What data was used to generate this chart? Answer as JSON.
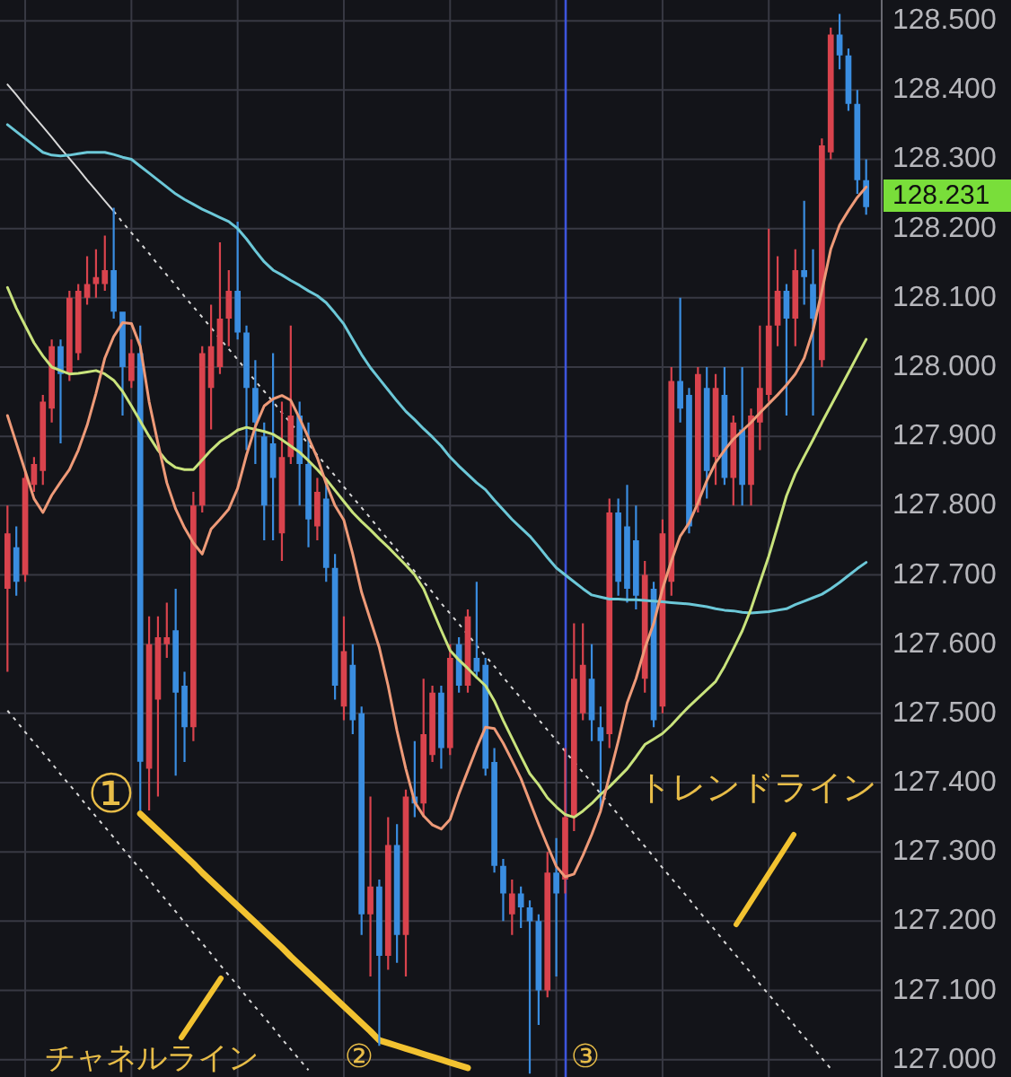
{
  "chart_data": {
    "type": "candlestick",
    "categories": [
      null,
      null,
      null,
      null,
      null,
      null,
      null,
      null,
      null,
      null,
      null,
      null,
      null,
      null,
      null,
      null,
      null,
      null,
      null,
      null,
      null,
      null,
      null,
      null,
      null,
      null,
      null,
      null,
      null,
      null,
      null,
      null,
      null,
      null,
      null,
      null,
      null,
      null,
      null,
      null,
      null,
      null,
      null,
      null,
      null,
      null,
      null,
      null,
      null,
      null,
      null,
      null,
      null,
      null,
      null,
      null,
      null,
      null,
      null,
      null,
      null,
      null,
      null,
      null,
      null,
      null,
      null,
      null,
      null,
      null,
      null,
      null,
      null,
      null,
      null,
      null,
      null,
      null,
      null,
      null,
      null,
      null,
      null,
      null,
      null,
      null,
      null,
      null,
      null,
      null,
      null,
      null,
      null,
      null,
      null,
      null,
      null,
      null
    ],
    "ohlc": [
      [
        127.68,
        127.8,
        127.56,
        127.76
      ],
      [
        127.74,
        127.77,
        127.67,
        127.69
      ],
      [
        127.7,
        127.85,
        127.69,
        127.84
      ],
      [
        127.83,
        127.87,
        127.82,
        127.86
      ],
      [
        127.85,
        127.96,
        127.83,
        127.95
      ],
      [
        127.94,
        128.04,
        127.92,
        128.03
      ],
      [
        128.03,
        128.04,
        127.89,
        127.99
      ],
      [
        127.99,
        128.11,
        127.98,
        128.1
      ],
      [
        128.02,
        128.12,
        128.01,
        128.11
      ],
      [
        128.1,
        128.16,
        128.09,
        128.12
      ],
      [
        128.12,
        128.17,
        128.1,
        128.13
      ],
      [
        128.12,
        128.19,
        128.11,
        128.14
      ],
      [
        128.14,
        128.23,
        128.07,
        128.08
      ],
      [
        128.08,
        128.08,
        127.93,
        128.0
      ],
      [
        127.98,
        128.04,
        127.97,
        128.02
      ],
      [
        128.02,
        128.06,
        127.36,
        127.43
      ],
      [
        127.42,
        127.64,
        127.36,
        127.6
      ],
      [
        127.52,
        127.64,
        127.38,
        127.61
      ],
      [
        127.6,
        127.66,
        127.58,
        127.61
      ],
      [
        127.62,
        127.68,
        127.41,
        127.53
      ],
      [
        127.54,
        127.56,
        127.43,
        127.48
      ],
      [
        127.48,
        127.82,
        127.46,
        127.8
      ],
      [
        127.8,
        128.03,
        127.79,
        128.02
      ],
      [
        127.97,
        128.09,
        127.91,
        128.03
      ],
      [
        128.0,
        128.18,
        127.99,
        128.07
      ],
      [
        128.07,
        128.14,
        128.03,
        128.11
      ],
      [
        128.11,
        128.21,
        128.04,
        128.05
      ],
      [
        128.05,
        128.06,
        127.88,
        127.97
      ],
      [
        127.97,
        128.01,
        127.86,
        127.92
      ],
      [
        127.9,
        127.92,
        127.75,
        127.8
      ],
      [
        127.89,
        128.02,
        127.75,
        127.84
      ],
      [
        127.76,
        127.95,
        127.72,
        127.87
      ],
      [
        127.87,
        128.06,
        127.86,
        127.93
      ],
      [
        127.93,
        127.95,
        127.8,
        127.86
      ],
      [
        127.86,
        127.92,
        127.74,
        127.78
      ],
      [
        127.77,
        127.84,
        127.75,
        127.82
      ],
      [
        127.81,
        127.83,
        127.69,
        127.71
      ],
      [
        127.71,
        127.73,
        127.52,
        127.54
      ],
      [
        127.51,
        127.64,
        127.49,
        127.59
      ],
      [
        127.57,
        127.6,
        127.47,
        127.49
      ],
      [
        127.5,
        127.51,
        127.18,
        127.21
      ],
      [
        127.21,
        127.38,
        127.12,
        127.25
      ],
      [
        127.25,
        127.26,
        127.02,
        127.15
      ],
      [
        127.15,
        127.35,
        127.13,
        127.31
      ],
      [
        127.31,
        127.34,
        127.14,
        127.18
      ],
      [
        127.18,
        127.39,
        127.12,
        127.38
      ],
      [
        127.38,
        127.46,
        127.35,
        127.37
      ],
      [
        127.37,
        127.55,
        127.35,
        127.47
      ],
      [
        127.44,
        127.54,
        127.43,
        127.53
      ],
      [
        127.53,
        127.54,
        127.42,
        127.45
      ],
      [
        127.45,
        127.6,
        127.44,
        127.58
      ],
      [
        127.6,
        127.61,
        127.53,
        127.54
      ],
      [
        127.54,
        127.65,
        127.53,
        127.64
      ],
      [
        127.58,
        127.69,
        127.55,
        127.56
      ],
      [
        127.57,
        127.58,
        127.41,
        127.42
      ],
      [
        127.43,
        127.45,
        127.27,
        127.28
      ],
      [
        127.28,
        127.29,
        127.2,
        127.24
      ],
      [
        127.21,
        127.26,
        127.18,
        127.24
      ],
      [
        127.24,
        127.25,
        127.19,
        127.22
      ],
      [
        127.22,
        127.23,
        126.98,
        127.2
      ],
      [
        127.2,
        127.21,
        127.05,
        127.1
      ],
      [
        127.1,
        127.3,
        127.09,
        127.27
      ],
      [
        127.27,
        127.32,
        127.12,
        127.24
      ],
      [
        127.26,
        127.45,
        127.24,
        127.35
      ],
      [
        127.35,
        127.63,
        127.33,
        127.55
      ],
      [
        127.5,
        127.63,
        127.49,
        127.57
      ],
      [
        127.55,
        127.6,
        127.46,
        127.49
      ],
      [
        127.48,
        127.51,
        127.36,
        127.46
      ],
      [
        127.47,
        127.81,
        127.45,
        127.79
      ],
      [
        127.79,
        127.81,
        127.67,
        127.69
      ],
      [
        127.77,
        127.83,
        127.66,
        127.68
      ],
      [
        127.75,
        127.8,
        127.65,
        127.67
      ],
      [
        127.55,
        127.72,
        127.53,
        127.7
      ],
      [
        127.68,
        127.69,
        127.48,
        127.49
      ],
      [
        127.51,
        127.78,
        127.5,
        127.76
      ],
      [
        127.69,
        128.0,
        127.67,
        127.98
      ],
      [
        127.98,
        128.1,
        127.92,
        127.94
      ],
      [
        127.96,
        127.97,
        127.76,
        127.77
      ],
      [
        127.8,
        128.0,
        127.79,
        127.99
      ],
      [
        127.97,
        128.0,
        127.81,
        127.85
      ],
      [
        127.87,
        127.99,
        127.83,
        127.97
      ],
      [
        127.96,
        128.0,
        127.83,
        127.84
      ],
      [
        127.84,
        127.93,
        127.8,
        127.92
      ],
      [
        127.91,
        128.0,
        127.8,
        127.83
      ],
      [
        127.83,
        127.94,
        127.8,
        127.93
      ],
      [
        127.92,
        128.06,
        127.88,
        127.97
      ],
      [
        127.96,
        128.2,
        127.95,
        128.06
      ],
      [
        128.06,
        128.16,
        128.03,
        128.11
      ],
      [
        128.11,
        128.12,
        127.93,
        128.07
      ],
      [
        128.07,
        128.17,
        128.03,
        128.14
      ],
      [
        128.14,
        128.24,
        128.09,
        128.13
      ],
      [
        128.12,
        128.17,
        127.93,
        128.07
      ],
      [
        128.01,
        128.33,
        128.0,
        128.32
      ],
      [
        128.31,
        128.49,
        128.3,
        128.48
      ],
      [
        128.48,
        128.51,
        128.43,
        128.45
      ],
      [
        128.45,
        128.46,
        128.37,
        128.38
      ],
      [
        128.38,
        128.4,
        128.25,
        128.27
      ],
      [
        128.27,
        128.3,
        128.22,
        128.231
      ]
    ],
    "colors": [
      "#d9434d",
      "#3a8de0",
      "#d9434d",
      "#d9434d",
      "#d9434d",
      "#d9434d",
      "#3a8de0",
      "#d9434d",
      "#d9434d",
      "#d9434d",
      "#d9434d",
      "#d9434d",
      "#3a8de0",
      "#3a8de0",
      "#d9434d",
      "#3a8de0",
      "#d9434d",
      "#d9434d",
      "#d9434d",
      "#3a8de0",
      "#3a8de0",
      "#d9434d",
      "#d9434d",
      "#d9434d",
      "#d9434d",
      "#d9434d",
      "#3a8de0",
      "#3a8de0",
      "#3a8de0",
      "#3a8de0",
      "#3a8de0",
      "#d9434d",
      "#d9434d",
      "#3a8de0",
      "#3a8de0",
      "#d9434d",
      "#3a8de0",
      "#3a8de0",
      "#d9434d",
      "#3a8de0",
      "#3a8de0",
      "#d9434d",
      "#3a8de0",
      "#d9434d",
      "#3a8de0",
      "#d9434d",
      "#3a8de0",
      "#d9434d",
      "#d9434d",
      "#3a8de0",
      "#d9434d",
      "#3a8de0",
      "#d9434d",
      "#3a8de0",
      "#3a8de0",
      "#3a8de0",
      "#3a8de0",
      "#d9434d",
      "#3a8de0",
      "#3a8de0",
      "#3a8de0",
      "#d9434d",
      "#3a8de0",
      "#d9434d",
      "#d9434d",
      "#d9434d",
      "#3a8de0",
      "#3a8de0",
      "#d9434d",
      "#3a8de0",
      "#3a8de0",
      "#3a8de0",
      "#d9434d",
      "#3a8de0",
      "#d9434d",
      "#d9434d",
      "#3a8de0",
      "#3a8de0",
      "#d9434d",
      "#3a8de0",
      "#d9434d",
      "#3a8de0",
      "#d9434d",
      "#3a8de0",
      "#d9434d",
      "#d9434d",
      "#d9434d",
      "#d9434d",
      "#3a8de0",
      "#d9434d",
      "#3a8de0",
      "#3a8de0",
      "#d9434d",
      "#d9434d",
      "#3a8de0",
      "#3a8de0",
      "#3a8de0",
      "#3a8de0"
    ],
    "series": [
      {
        "type": "line",
        "color": "#6cc8d8",
        "values": [
          128.35,
          128.34,
          128.33,
          128.32,
          128.31,
          128.306,
          128.305,
          128.306,
          128.308,
          128.31,
          128.31,
          128.31,
          128.307,
          128.303,
          128.3,
          128.29,
          128.28,
          128.27,
          128.26,
          128.25,
          128.242,
          128.235,
          128.228,
          128.222,
          128.216,
          128.21,
          128.2,
          128.185,
          128.168,
          128.152,
          128.14,
          128.133,
          128.125,
          128.118,
          128.11,
          128.103,
          128.093,
          128.078,
          128.062,
          128.04,
          128.018,
          127.999,
          127.983,
          127.967,
          127.951,
          127.936,
          127.924,
          127.911,
          127.899,
          127.886,
          127.87,
          127.857,
          127.845,
          127.833,
          127.823,
          127.808,
          127.794,
          127.78,
          127.768,
          127.756,
          127.741,
          127.725,
          127.71,
          127.7,
          127.69,
          127.68,
          127.671,
          127.668,
          127.665,
          127.665,
          127.664,
          127.664,
          127.663,
          127.662,
          127.661,
          127.66,
          127.659,
          127.658,
          127.656,
          127.654,
          127.651,
          127.649,
          127.648,
          127.646,
          127.645,
          127.646,
          127.647,
          127.649,
          127.651,
          127.657,
          127.662,
          127.667,
          127.672,
          127.68,
          127.689,
          127.699,
          127.709,
          127.718
        ]
      },
      {
        "type": "line",
        "color": "#c9e37c",
        "values": [
          128.115,
          128.085,
          128.06,
          128.035,
          128.016,
          128.0,
          127.995,
          127.99,
          127.991,
          127.993,
          127.995,
          127.99,
          127.981,
          127.965,
          127.944,
          127.922,
          127.9,
          127.88,
          127.864,
          127.855,
          127.852,
          127.852,
          127.866,
          127.88,
          127.892,
          127.9,
          127.909,
          127.913,
          127.91,
          127.907,
          127.903,
          127.895,
          127.886,
          127.877,
          127.865,
          127.852,
          127.838,
          127.822,
          127.806,
          127.79,
          127.777,
          127.765,
          127.752,
          127.74,
          127.727,
          127.714,
          127.7,
          127.68,
          127.65,
          127.62,
          127.591,
          127.577,
          127.565,
          127.552,
          127.54,
          127.518,
          127.49,
          127.464,
          127.438,
          127.413,
          127.397,
          127.378,
          127.365,
          127.354,
          127.35,
          127.359,
          127.37,
          127.383,
          127.394,
          127.407,
          127.42,
          127.437,
          127.455,
          127.463,
          127.471,
          127.483,
          127.497,
          127.51,
          127.522,
          127.534,
          127.546,
          127.568,
          127.593,
          127.619,
          127.651,
          127.689,
          127.727,
          127.77,
          127.814,
          127.846,
          127.871,
          127.895,
          127.92,
          127.944,
          127.968,
          127.992,
          128.016,
          128.04
        ]
      },
      {
        "type": "line",
        "color": "#ee9a78",
        "values": [
          127.93,
          127.89,
          127.85,
          127.81,
          127.79,
          127.815,
          127.834,
          127.852,
          127.88,
          127.916,
          127.962,
          128.013,
          128.044,
          128.064,
          128.063,
          128.03,
          127.95,
          127.89,
          127.833,
          127.795,
          127.768,
          127.746,
          127.73,
          127.766,
          127.78,
          127.795,
          127.825,
          127.873,
          127.914,
          127.944,
          127.954,
          127.959,
          127.952,
          127.926,
          127.898,
          127.869,
          127.832,
          127.8,
          127.779,
          127.73,
          127.675,
          127.635,
          127.595,
          127.54,
          127.475,
          127.42,
          127.372,
          127.352,
          127.339,
          127.333,
          127.347,
          127.384,
          127.417,
          127.45,
          127.48,
          127.478,
          127.457,
          127.432,
          127.406,
          127.373,
          127.34,
          127.309,
          127.279,
          127.264,
          127.268,
          127.295,
          127.325,
          127.359,
          127.41,
          127.46,
          127.515,
          127.55,
          127.594,
          127.63,
          127.68,
          127.72,
          127.756,
          127.775,
          127.804,
          127.836,
          127.862,
          127.88,
          127.896,
          127.908,
          127.92,
          127.934,
          127.947,
          127.96,
          127.974,
          127.99,
          128.013,
          128.053,
          128.11,
          128.17,
          128.205,
          128.226,
          128.245,
          128.26
        ]
      },
      {
        "type": "line",
        "color": "#d8d8d8",
        "values": [
          128.408,
          128.393,
          128.377,
          128.362,
          128.347,
          128.332,
          128.316,
          128.301,
          128.286,
          128.27,
          128.255,
          128.24,
          128.225,
          null,
          null,
          null,
          null,
          null,
          null,
          null,
          null,
          null,
          null,
          null,
          null,
          null,
          null,
          null,
          null,
          null,
          null,
          null,
          null,
          null,
          null,
          null,
          null,
          null,
          null,
          null,
          null,
          null,
          null,
          null,
          null,
          null,
          null,
          null,
          null,
          null,
          null,
          null,
          null,
          null,
          null,
          null,
          null,
          null,
          null,
          null,
          null,
          null,
          null,
          null,
          null,
          null,
          null,
          null,
          null,
          null,
          null,
          null,
          null,
          null,
          null,
          null,
          null,
          null,
          null,
          null,
          null,
          null,
          null,
          null,
          null,
          null,
          null,
          null,
          null,
          null,
          null,
          null,
          null,
          null,
          null,
          null,
          null,
          null
        ]
      },
      {
        "type": "line",
        "color": "#d8d8d8",
        "line_style": "dotted",
        "values": [
          null,
          null,
          null,
          null,
          null,
          null,
          null,
          null,
          null,
          null,
          null,
          null,
          128.225,
          128.209,
          128.194,
          128.179,
          128.164,
          128.148,
          128.133,
          128.118,
          128.102,
          128.087,
          128.072,
          128.057,
          128.041,
          128.026,
          128.011,
          127.995,
          127.98,
          127.965,
          127.95,
          127.934,
          127.919,
          127.904,
          127.889,
          127.873,
          127.858,
          127.843,
          127.827,
          127.812,
          127.797,
          127.782,
          127.766,
          127.751,
          127.736,
          127.72,
          127.705,
          127.69,
          127.675,
          127.659,
          127.644,
          127.629,
          127.614,
          127.598,
          127.583,
          127.568,
          127.552,
          127.537,
          127.522,
          127.507,
          127.491,
          127.476,
          127.461,
          127.445,
          127.43,
          127.415,
          127.4,
          127.384,
          127.369,
          127.354,
          127.338,
          127.323,
          127.308,
          127.293,
          127.277,
          127.262,
          127.247,
          127.232,
          127.216,
          127.201,
          127.186,
          127.17,
          127.155,
          127.14,
          127.125,
          127.109,
          127.094,
          127.079,
          127.064,
          127.048,
          127.033,
          127.018,
          127.002,
          126.987,
          null,
          null,
          null,
          null
        ]
      },
      {
        "type": "line",
        "color": "#d8d8d8",
        "line_style": "dotted",
        "values": [
          127.504,
          127.489,
          127.473,
          127.458,
          127.443,
          127.428,
          127.412,
          127.397,
          127.382,
          127.366,
          127.351,
          127.336,
          127.321,
          127.305,
          127.29,
          127.275,
          127.26,
          127.244,
          127.229,
          127.214,
          127.198,
          127.183,
          127.168,
          127.153,
          127.137,
          127.122,
          127.107,
          127.091,
          127.076,
          127.061,
          127.046,
          127.03,
          127.015,
          127.0,
          126.985,
          null,
          null,
          null,
          null,
          null,
          null,
          null,
          null,
          null,
          null,
          null,
          null,
          null,
          null,
          null,
          null,
          null,
          null,
          null,
          null,
          null,
          null,
          null,
          null,
          null,
          null,
          null,
          null,
          null,
          null,
          null,
          null,
          null,
          null,
          null,
          null,
          null,
          null,
          null,
          null,
          null,
          null,
          null,
          null,
          null,
          null,
          null,
          null,
          null,
          null,
          null,
          null,
          null,
          null,
          null,
          null,
          null,
          null,
          null,
          null,
          null,
          null,
          null
        ]
      },
      {
        "type": "line",
        "color": "#f2c230",
        "values": [
          null,
          null,
          null,
          null,
          null,
          null,
          null,
          null,
          null,
          null,
          null,
          null,
          null,
          null,
          null,
          127.355,
          127.343,
          127.331,
          127.319,
          127.307,
          127.295,
          127.283,
          127.27,
          127.258,
          127.246,
          127.234,
          127.222,
          127.21,
          127.198,
          127.186,
          127.174,
          127.162,
          127.149,
          127.137,
          127.125,
          127.113,
          127.101,
          127.089,
          127.077,
          127.065,
          127.053,
          127.041,
          127.028,
          127.024,
          127.02,
          127.016,
          127.012,
          127.008,
          127.004,
          127.0,
          126.996,
          126.992,
          126.988,
          null,
          null,
          null,
          null,
          null,
          null,
          null,
          null,
          null,
          null,
          null,
          null,
          null,
          null,
          null,
          null,
          null,
          null,
          null,
          null,
          null,
          null,
          null,
          null,
          null,
          null,
          null,
          null,
          null,
          null,
          null,
          null,
          null,
          null,
          null,
          null,
          null,
          null,
          null,
          null,
          null,
          null,
          null,
          null,
          null
        ]
      }
    ],
    "ylim": [
      126.975,
      128.53
    ],
    "yticks": [
      {
        "value": 127,
        "label": "127.000"
      },
      {
        "value": 127.1,
        "label": "127.100"
      },
      {
        "value": 127.2,
        "label": "127.200"
      },
      {
        "value": 127.3,
        "label": "127.300"
      },
      {
        "value": 127.4,
        "label": "127.400"
      },
      {
        "value": 127.5,
        "label": "127.500"
      },
      {
        "value": 127.6,
        "label": "127.600"
      },
      {
        "value": 127.7,
        "label": "127.700"
      },
      {
        "value": 127.8,
        "label": "127.800"
      },
      {
        "value": 127.9,
        "label": "127.900"
      },
      {
        "value": 128,
        "label": "128.000"
      },
      {
        "value": 128.1,
        "label": "128.100"
      },
      {
        "value": 128.2,
        "label": "128.200"
      },
      {
        "value": 128.3,
        "label": "128.300"
      },
      {
        "value": 128.4,
        "label": "128.400"
      },
      {
        "value": 128.5,
        "label": "128.500"
      }
    ],
    "tick_labels": "y",
    "grid": true,
    "annotations": [
      "トレンドライン",
      "チャネルライン",
      "①",
      "②",
      "③",
      "128.231"
    ]
  }
}
